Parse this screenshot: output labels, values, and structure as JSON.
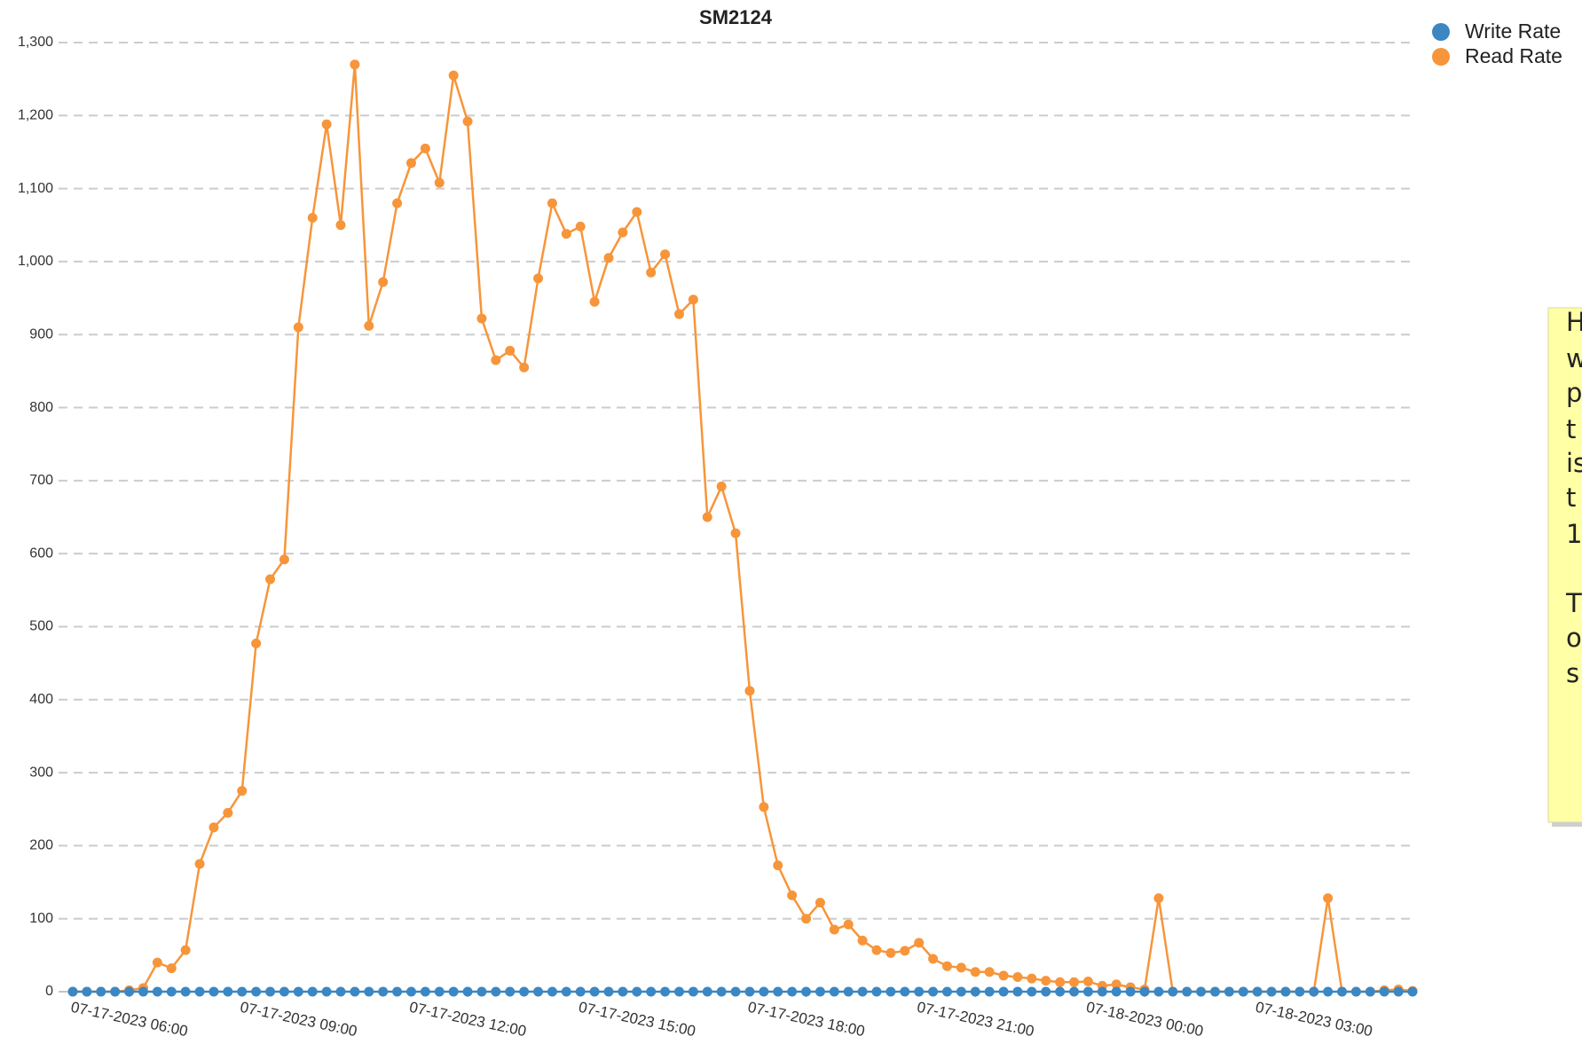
{
  "chart_data": {
    "type": "line",
    "title": "SM2124",
    "x": [
      "07-17-2023 05:00",
      "07-17-2023 05:15",
      "07-17-2023 05:30",
      "07-17-2023 05:45",
      "07-17-2023 06:00",
      "07-17-2023 06:15",
      "07-17-2023 06:30",
      "07-17-2023 06:45",
      "07-17-2023 07:00",
      "07-17-2023 07:15",
      "07-17-2023 07:30",
      "07-17-2023 07:45",
      "07-17-2023 08:00",
      "07-17-2023 08:15",
      "07-17-2023 08:30",
      "07-17-2023 08:45",
      "07-17-2023 09:00",
      "07-17-2023 09:15",
      "07-17-2023 09:30",
      "07-17-2023 09:45",
      "07-17-2023 10:00",
      "07-17-2023 10:15",
      "07-17-2023 10:30",
      "07-17-2023 10:45",
      "07-17-2023 11:00",
      "07-17-2023 11:15",
      "07-17-2023 11:30",
      "07-17-2023 11:45",
      "07-17-2023 12:00",
      "07-17-2023 12:15",
      "07-17-2023 12:30",
      "07-17-2023 12:45",
      "07-17-2023 13:00",
      "07-17-2023 13:15",
      "07-17-2023 13:30",
      "07-17-2023 13:45",
      "07-17-2023 14:00",
      "07-17-2023 14:15",
      "07-17-2023 14:30",
      "07-17-2023 14:45",
      "07-17-2023 15:00",
      "07-17-2023 15:15",
      "07-17-2023 15:30",
      "07-17-2023 15:45",
      "07-17-2023 16:00",
      "07-17-2023 16:15",
      "07-17-2023 16:30",
      "07-17-2023 16:45",
      "07-17-2023 17:00",
      "07-17-2023 17:15",
      "07-17-2023 17:30",
      "07-17-2023 17:45",
      "07-17-2023 18:00",
      "07-17-2023 18:15",
      "07-17-2023 18:30",
      "07-17-2023 18:45",
      "07-17-2023 19:00",
      "07-17-2023 19:15",
      "07-17-2023 19:30",
      "07-17-2023 19:45",
      "07-17-2023 20:00",
      "07-17-2023 20:15",
      "07-17-2023 20:30",
      "07-17-2023 20:45",
      "07-17-2023 21:00",
      "07-17-2023 21:15",
      "07-17-2023 21:30",
      "07-17-2023 21:45",
      "07-17-2023 22:00",
      "07-17-2023 22:15",
      "07-17-2023 22:30",
      "07-17-2023 22:45",
      "07-17-2023 23:00",
      "07-17-2023 23:15",
      "07-17-2023 23:30",
      "07-17-2023 23:45",
      "07-18-2023 00:00",
      "07-18-2023 00:15",
      "07-18-2023 00:30",
      "07-18-2023 00:45",
      "07-18-2023 01:00",
      "07-18-2023 01:15",
      "07-18-2023 01:30",
      "07-18-2023 01:45",
      "07-18-2023 02:00",
      "07-18-2023 02:15",
      "07-18-2023 02:30",
      "07-18-2023 02:45",
      "07-18-2023 03:00",
      "07-18-2023 03:15",
      "07-18-2023 03:30",
      "07-18-2023 03:45",
      "07-18-2023 04:00",
      "07-18-2023 04:15",
      "07-18-2023 04:30",
      "07-18-2023 04:45"
    ],
    "series": [
      {
        "name": "Write Rate",
        "color": "#3a87c4",
        "values": [
          0,
          0,
          0,
          0,
          0,
          0,
          0,
          0,
          0,
          0,
          0,
          0,
          0,
          0,
          0,
          0,
          0,
          0,
          0,
          0,
          0,
          0,
          0,
          0,
          0,
          0,
          0,
          0,
          0,
          0,
          0,
          0,
          0,
          0,
          0,
          0,
          0,
          0,
          0,
          0,
          0,
          0,
          0,
          0,
          0,
          0,
          0,
          0,
          0,
          0,
          0,
          0,
          0,
          0,
          0,
          0,
          0,
          0,
          0,
          0,
          0,
          0,
          0,
          0,
          0,
          0,
          0,
          0,
          0,
          0,
          0,
          0,
          0,
          0,
          0,
          0,
          0,
          0,
          0,
          0,
          0,
          0,
          0,
          0,
          0,
          0,
          0,
          0,
          0,
          0,
          0,
          0,
          0,
          0,
          0,
          0
        ]
      },
      {
        "name": "Read Rate",
        "color": "#f7953a",
        "values": [
          0,
          0,
          0,
          0,
          2,
          5,
          40,
          32,
          57,
          175,
          225,
          245,
          275,
          477,
          565,
          592,
          910,
          1060,
          1188,
          1050,
          1270,
          912,
          972,
          1080,
          1135,
          1155,
          1108,
          1255,
          1192,
          922,
          865,
          878,
          855,
          977,
          1080,
          1038,
          1048,
          945,
          1005,
          1040,
          1068,
          985,
          1010,
          928,
          948,
          650,
          692,
          628,
          412,
          253,
          173,
          132,
          100,
          122,
          85,
          92,
          70,
          57,
          53,
          56,
          67,
          45,
          35,
          33,
          27,
          27,
          22,
          20,
          18,
          15,
          13,
          13,
          14,
          8,
          10,
          6,
          3,
          128,
          0,
          0,
          0,
          0,
          0,
          0,
          0,
          0,
          0,
          0,
          0,
          128,
          0,
          0,
          0,
          2,
          3,
          1
        ]
      }
    ],
    "xlim": [
      "07-17-2023 05:00",
      "07-18-2023 04:45"
    ],
    "xticks": [
      "07-17-2023 06:00",
      "07-17-2023 09:00",
      "07-17-2023 12:00",
      "07-17-2023 15:00",
      "07-17-2023 18:00",
      "07-17-2023 21:00",
      "07-18-2023 00:00",
      "07-18-2023 03:00"
    ],
    "ylim": [
      0,
      1300
    ],
    "yticks": [
      0,
      100,
      200,
      300,
      400,
      500,
      600,
      700,
      800,
      900,
      {
        "value": 1000,
        "label": "1,000"
      },
      {
        "value": 1100,
        "label": "1,100"
      },
      {
        "value": 1200,
        "label": "1,200"
      },
      {
        "value": 1300,
        "label": "1,300"
      }
    ],
    "grid": true,
    "legend": "top-right"
  },
  "note": {
    "lines": [
      "H",
      "w",
      "p",
      "t",
      "is",
      "t",
      "1",
      "T",
      "o",
      "s"
    ]
  }
}
